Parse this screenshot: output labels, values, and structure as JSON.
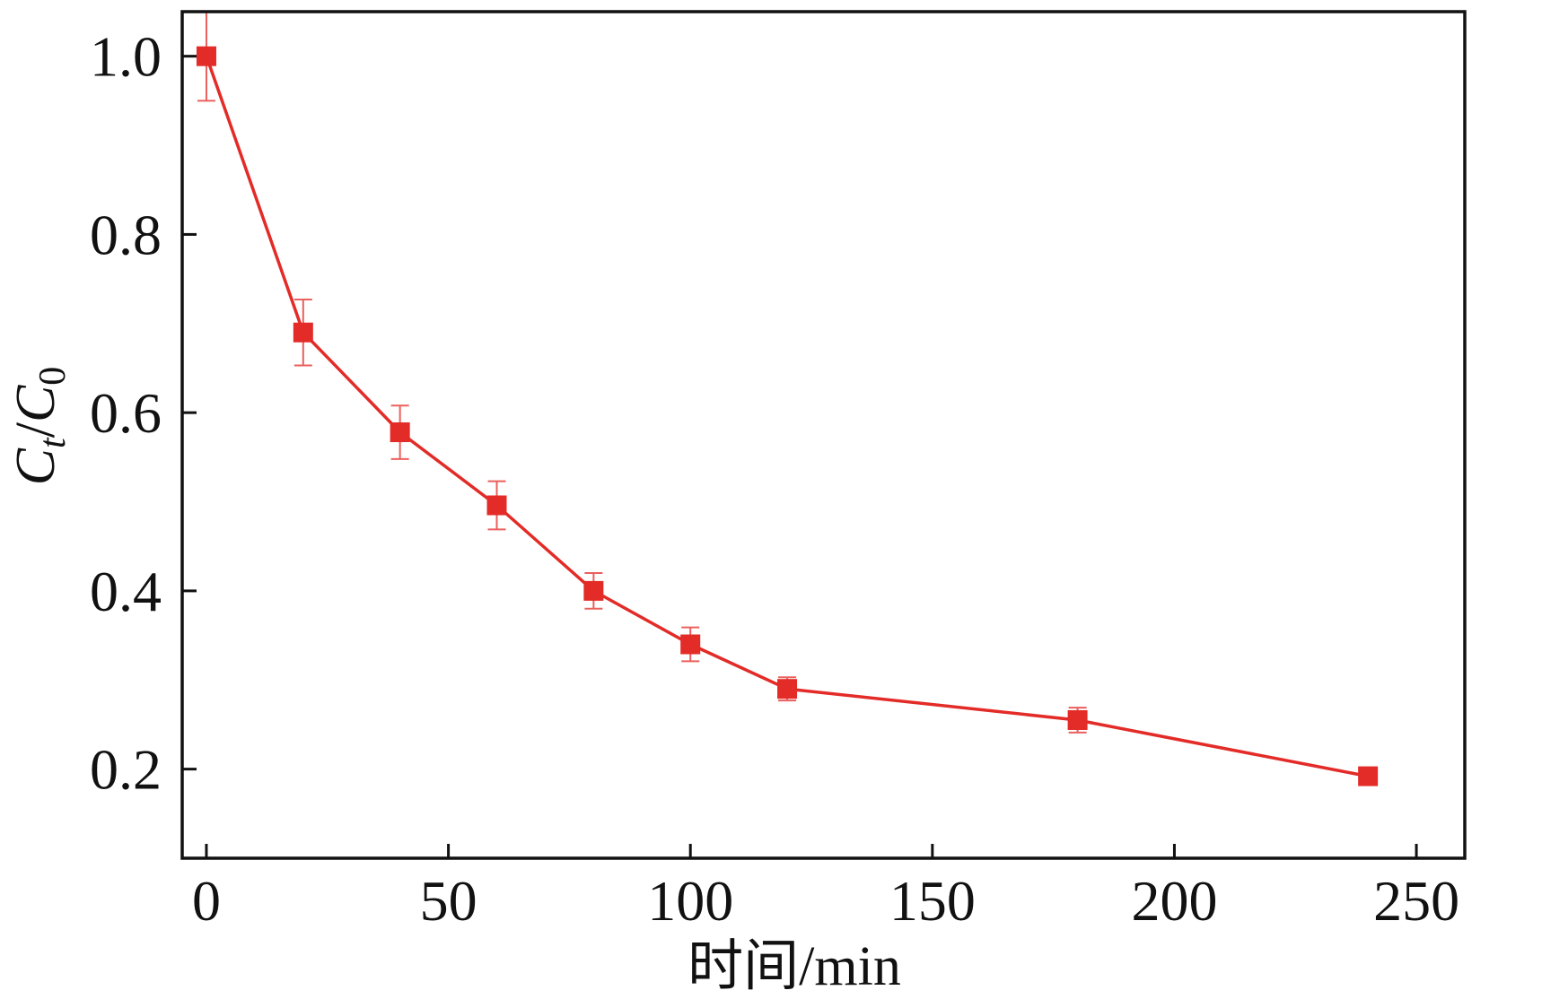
{
  "chart_data": {
    "type": "line",
    "title": "",
    "xlabel": "时间/min",
    "ylabel": {
      "c1": "C",
      "sub1": "t",
      "slash": "/",
      "c2": "C",
      "sub2": "0"
    },
    "xlim": [
      -5,
      260
    ],
    "ylim": [
      0.1,
      1.05
    ],
    "xticks": [
      0,
      50,
      100,
      150,
      200,
      250
    ],
    "xticklabels": [
      "0",
      "50",
      "100",
      "150",
      "200",
      "250"
    ],
    "yticks": [
      0.2,
      0.4,
      0.6,
      0.8,
      1.0
    ],
    "yticklabels": [
      "0.2",
      "0.4",
      "0.6",
      "0.8",
      "1.0"
    ],
    "grid": false,
    "legend": "none",
    "series": [
      {
        "x": [
          0,
          20,
          40,
          60,
          80,
          100,
          120,
          180,
          240
        ],
        "y": [
          1.0,
          0.69,
          0.578,
          0.496,
          0.4,
          0.34,
          0.29,
          0.255,
          0.192
        ],
        "yerr": [
          0.05,
          0.037,
          0.03,
          0.027,
          0.02,
          0.019,
          0.013,
          0.014,
          0.005
        ],
        "color": "#e32b27",
        "marker": "square"
      }
    ]
  }
}
